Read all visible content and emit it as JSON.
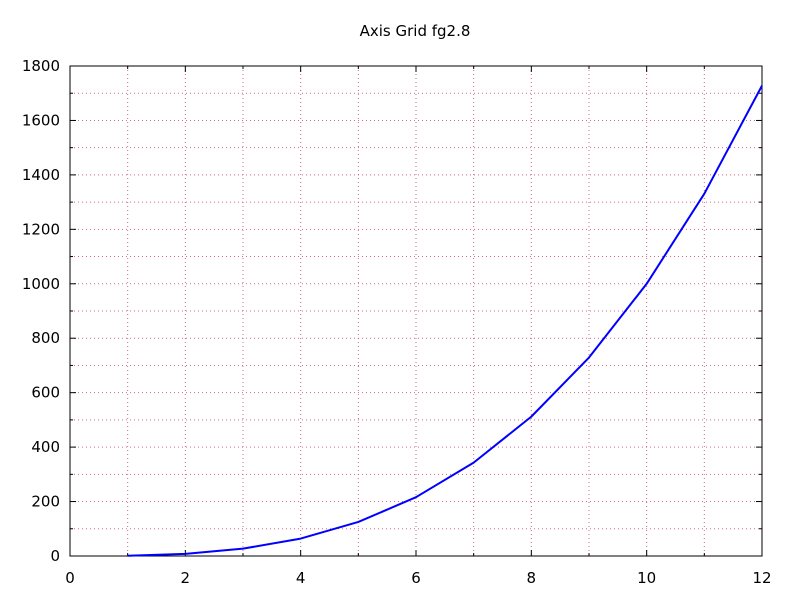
{
  "chart_data": {
    "type": "line",
    "title": "Axis Grid fg2.8",
    "xlabel": "",
    "ylabel": "",
    "xlim": [
      0,
      12
    ],
    "ylim": [
      0,
      1800
    ],
    "xticks": [
      0,
      2,
      4,
      6,
      8,
      10,
      12
    ],
    "yticks": [
      0,
      200,
      400,
      600,
      800,
      1000,
      1200,
      1400,
      1600,
      1800
    ],
    "x_minor_step": 1,
    "y_minor_step": 100,
    "grid": true,
    "minor_grid": true,
    "colors": {
      "line": "#0000ff",
      "grid": "#cc4f6e",
      "axes": "#000000"
    },
    "series": [
      {
        "x": [
          1,
          2,
          3,
          4,
          5,
          6,
          7,
          8,
          9,
          10,
          11,
          12
        ],
        "y": [
          1,
          8,
          27,
          64,
          125,
          216,
          343,
          512,
          729,
          1000,
          1331,
          1728
        ]
      }
    ]
  }
}
